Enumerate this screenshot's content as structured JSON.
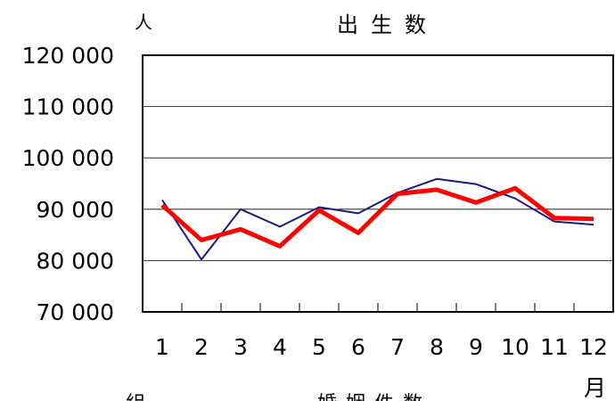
{
  "chart_data": {
    "type": "line",
    "title": "出生数",
    "ylabel": "人",
    "xlabel": "月",
    "ylim": [
      70000,
      120000
    ],
    "yticks": [
      70000,
      80000,
      90000,
      100000,
      110000,
      120000
    ],
    "ytick_labels": [
      "70 000",
      "80 000",
      "90 000",
      "100 000",
      "110 000",
      "120 000"
    ],
    "categories": [
      "1",
      "2",
      "3",
      "4",
      "5",
      "6",
      "7",
      "8",
      "9",
      "10",
      "11",
      "12"
    ],
    "grid": true,
    "series": [
      {
        "color": "#1a1a80",
        "values": [
          91800,
          80200,
          90000,
          86600,
          90400,
          89200,
          93200,
          95900,
          94900,
          92100,
          87600,
          87000
        ]
      },
      {
        "color": "#ff0000",
        "values": [
          90800,
          84000,
          86100,
          82800,
          89800,
          85400,
          93000,
          93800,
          91300,
          94100,
          88300,
          88100
        ]
      }
    ]
  },
  "footer_cut": {
    "left_text": "組",
    "right_text": "婚姻件数"
  }
}
